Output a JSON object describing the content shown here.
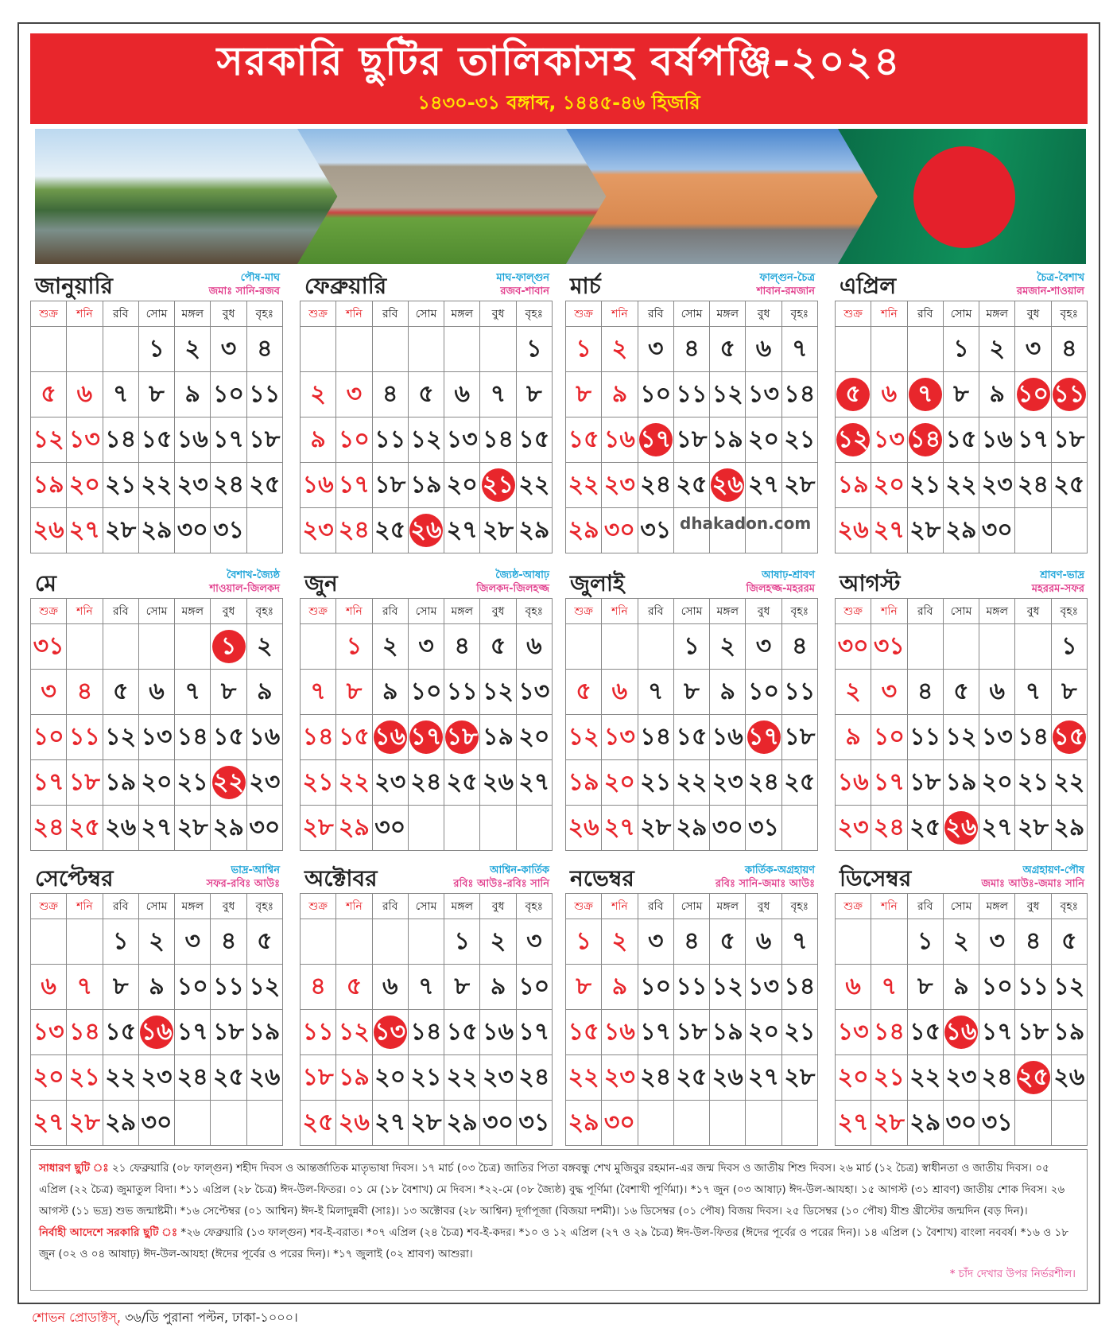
{
  "header": {
    "title": "সরকারি ছুটির তালিকাসহ বর্ষপঞ্জি-২০২৪",
    "subtitle": "১৪৩০-৩১ বঙ্গাব্দ, ১৪৪৫-৪৬ হিজরি"
  },
  "year": 2024,
  "colors": {
    "accent": "#e8262c",
    "bangla_month": "#1aa3d8",
    "hijri_month": "#e2408e"
  },
  "weekdays": [
    "শুক্র",
    "শনি",
    "রবি",
    "সোম",
    "মঙ্গল",
    "বুধ",
    "বৃহঃ"
  ],
  "watermark": "dhakadon.com",
  "months": [
    {
      "name": "জানুয়ারি",
      "bangla": "পৌষ-মাঘ",
      "hijri": "জমাঃ সানি-রজব",
      "holidays": []
    },
    {
      "name": "ফেব্রুয়ারি",
      "bangla": "মাঘ-ফাল্গুন",
      "hijri": "রজব-শাবান",
      "holidays": [
        21,
        26
      ]
    },
    {
      "name": "মার্চ",
      "bangla": "ফাল্গুন-চৈত্র",
      "hijri": "শাবান-রমজান",
      "holidays": [
        17,
        26
      ]
    },
    {
      "name": "এপ্রিল",
      "bangla": "চৈত্র-বৈশাখ",
      "hijri": "রমজান-শাওয়াল",
      "holidays": [
        5,
        7,
        10,
        11,
        12,
        14
      ]
    },
    {
      "name": "মে",
      "bangla": "বৈশাখ-জ্যৈষ্ঠ",
      "hijri": "শাওয়াল-জিলকদ",
      "holidays": [
        1,
        22
      ]
    },
    {
      "name": "জুন",
      "bangla": "জ্যৈষ্ঠ-আষাঢ়",
      "hijri": "জিলকদ-জিলহজ্জ",
      "holidays": [
        16,
        17,
        18
      ]
    },
    {
      "name": "জুলাই",
      "bangla": "আষাঢ়-শ্রাবণ",
      "hijri": "জিলহজ্জ-মহররম",
      "holidays": [
        17
      ]
    },
    {
      "name": "আগস্ট",
      "bangla": "শ্রাবণ-ভাদ্র",
      "hijri": "মহররম-সফর",
      "holidays": [
        15,
        26
      ]
    },
    {
      "name": "সেপ্টেম্বর",
      "bangla": "ভাদ্র-আশ্বিন",
      "hijri": "সফর-রবিঃ আউঃ",
      "holidays": [
        16
      ]
    },
    {
      "name": "অক্টোবর",
      "bangla": "আশ্বিন-কার্তিক",
      "hijri": "রবিঃ আউঃ-রবিঃ সানি",
      "holidays": [
        13
      ]
    },
    {
      "name": "নভেম্বর",
      "bangla": "কার্তিক-অগ্রহায়ণ",
      "hijri": "রবিঃ সানি-জমাঃ আউঃ",
      "holidays": []
    },
    {
      "name": "ডিসেম্বর",
      "bangla": "অগ্রহায়ণ-পৌষ",
      "hijri": "জমাঃ আউঃ-জমাঃ সানি",
      "holidays": [
        16,
        25
      ]
    }
  ],
  "notes": {
    "general_label": "সাধারণ ছুটি ঃ",
    "general_text": "২১ ফেব্রুয়ারি (০৮ ফাল্গুন) শহীদ দিবস ও আন্তর্জাতিক মাতৃভাষা দিবস। ১৭ মার্চ (০৩ চৈত্র) জাতির পিতা বঙ্গবন্ধু শেখ মুজিবুর রহমান-এর জন্ম দিবস ও জাতীয় শিশু দিবস। ২৬ মার্চ (১২ চৈত্র) স্বাধীনতা ও জাতীয় দিবস। ০৫ এপ্রিল (২২ চৈত্র) জুমাতুল বিদা। *১১ এপ্রিল (২৮ চৈত্র) ঈদ-উল-ফিতর। ০১ মে (১৮ বৈশাখ) মে দিবস। *২২-মে (০৮ জ্যৈষ্ঠ) বুদ্ধ পূর্ণিমা (বৈশাখী পূর্ণিমা)। *১৭ জুন (০৩ আষাঢ়) ঈদ-উল-আযহা। ১৫ আগস্ট (৩১ শ্রাবণ) জাতীয় শোক দিবস। ২৬ আগস্ট (১১ ভদ্র) শুভ জন্মাষ্টমী। *১৬ সেপ্টেম্বর (০১ আশ্বিন) ঈদ-ই মিলাদুন্নবী (সাঃ)। ১৩ অক্টোবর (২৮ আশ্বিন) দূর্গাপূজা (বিজয়া দশমী)। ১৬ ডিসেম্বর (০১ পৌষ) বিজয় দিবস। ২৫ ডিসেম্বর (১০ পৌষ) যীশু খ্রীস্টের জন্মদিন (বড় দিন)।",
    "executive_label": "নির্বাহী আদেশে সরকারি ছুটি ঃ",
    "executive_text": "*২৬ ফেব্রুয়ারি (১৩ ফাল্গুন) শব-ই-বরাত। *০৭ এপ্রিল (২৪ চৈত্র) শব-ই-কদর। *১০ ও ১২ এপ্রিল (২৭ ও ২৯ চৈত্র) ঈদ-উল-ফিতর (ঈদের পূর্বের ও পরের দিন)। ১৪ এপ্রিল (১ বৈশাখ) বাংলা নববর্ষ। *১৬ ও ১৮ জুন (০২ ও ০৪ আষাঢ়) ঈদ-উল-আযহা (ঈদের পূর্বের ও পরের দিন)। *১৭ জুলাই (০২ শ্রাবণ) আশুরা।",
    "moon_note": "* চাঁদ দেখার উপর নির্ভরশীল।"
  },
  "publisher": {
    "name": "শোভন প্রোডাক্টস্,",
    "address": "৩৬/ডি পুরানা পল্টন, ঢাকা-১০০০।"
  }
}
